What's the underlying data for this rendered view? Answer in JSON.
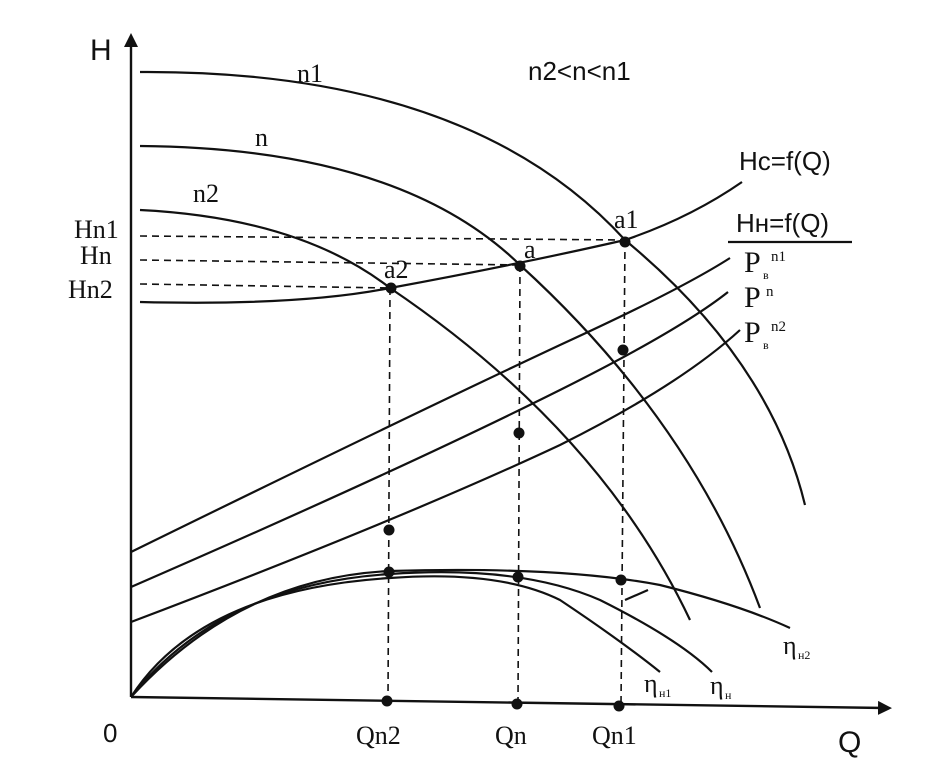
{
  "axes": {
    "y_label": "H",
    "x_label": "Q",
    "origin_label": "0"
  },
  "header": {
    "relation": "n2<n<n1"
  },
  "curves": {
    "head_n1": "n1",
    "head_n": "n",
    "head_n2": "n2",
    "system": "Hc=f(Q)",
    "pump": "Hн=f(Q)",
    "power_n1_main": "P",
    "power_n1_sub": "в",
    "power_n1_sup": "n1",
    "power_n_main": "P",
    "power_n_sup": "n",
    "power_n2_main": "P",
    "power_n2_sub": "в",
    "power_n2_sup": "n2",
    "eff_n1_main": "η",
    "eff_n1_sub": "н1",
    "eff_n_main": "η",
    "eff_n_sub": "н",
    "eff_n2_main": "η",
    "eff_n2_sub": "н2"
  },
  "points": {
    "a1": "a1",
    "a": "a",
    "a2": "a2"
  },
  "y_ticks": {
    "hn1": "Hn1",
    "hn": "Hn",
    "hn2": "Hn2"
  },
  "x_ticks": {
    "qn2": "Qn2",
    "qn": "Qn",
    "qn1": "Qn1"
  }
}
